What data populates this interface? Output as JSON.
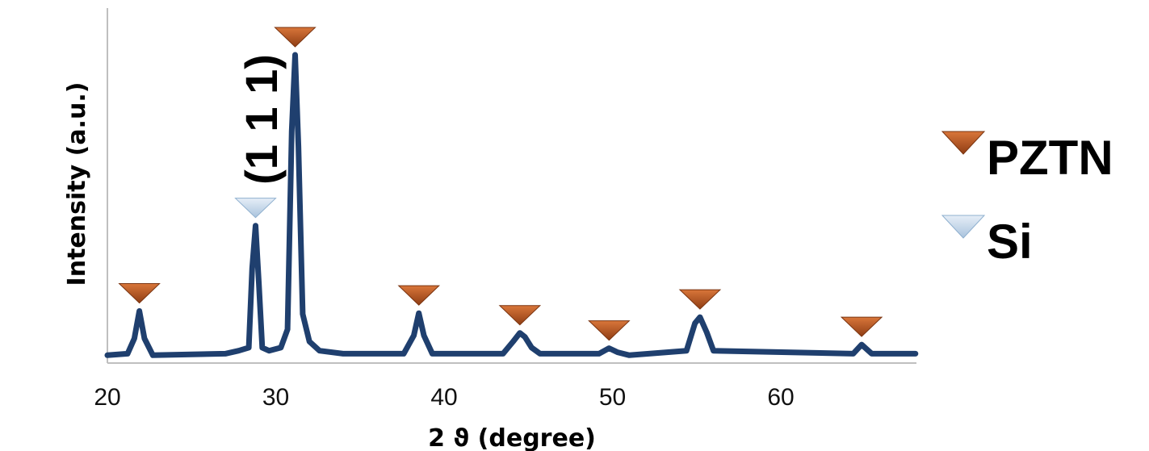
{
  "chart_data": {
    "type": "line",
    "title": "",
    "xlabel": "2 ϑ (degree)",
    "ylabel": "Intensity (a.u.)",
    "xlim": [
      20,
      68
    ],
    "ylim": [
      0,
      1
    ],
    "x_ticks": [
      "20",
      "30",
      "40",
      "50",
      "60"
    ],
    "y_ticks_shown": false,
    "grid": false,
    "legend_position": "right",
    "annotation": "(1 1 1)",
    "series": [
      {
        "color": "#1f3f6e",
        "x": [
          20,
          21.2,
          21.6,
          21.9,
          22.2,
          22.7,
          27,
          27.8,
          28.4,
          28.6,
          28.8,
          29.0,
          29.2,
          29.6,
          30.3,
          30.7,
          30.95,
          31.15,
          31.35,
          31.6,
          32.0,
          32.6,
          34,
          37.6,
          38.2,
          38.5,
          38.8,
          39.3,
          43.5,
          44.1,
          44.5,
          44.8,
          45.2,
          45.7,
          49.2,
          49.8,
          50.3,
          51.0,
          54.4,
          54.9,
          55.2,
          55.6,
          56.0,
          64.3,
          64.8,
          65.4,
          68
        ],
        "y": [
          0.015,
          0.02,
          0.07,
          0.16,
          0.07,
          0.015,
          0.02,
          0.03,
          0.04,
          0.3,
          0.44,
          0.25,
          0.04,
          0.03,
          0.04,
          0.1,
          0.75,
          1.0,
          0.7,
          0.15,
          0.06,
          0.03,
          0.02,
          0.02,
          0.08,
          0.153,
          0.08,
          0.02,
          0.02,
          0.06,
          0.088,
          0.075,
          0.04,
          0.02,
          0.02,
          0.038,
          0.025,
          0.015,
          0.03,
          0.12,
          0.14,
          0.09,
          0.03,
          0.02,
          0.05,
          0.02,
          0.02
        ]
      }
    ],
    "markers": [
      {
        "phase": "PZTN",
        "x": 21.9
      },
      {
        "phase": "Si",
        "x": 28.8
      },
      {
        "phase": "PZTN",
        "x": 31.15
      },
      {
        "phase": "PZTN",
        "x": 38.5
      },
      {
        "phase": "PZTN",
        "x": 44.5
      },
      {
        "phase": "PZTN",
        "x": 49.8
      },
      {
        "phase": "PZTN",
        "x": 55.2
      },
      {
        "phase": "PZTN",
        "x": 64.8
      }
    ],
    "legend": [
      {
        "label": "PZTN",
        "color": "#b5531f"
      },
      {
        "label": "Si",
        "color": "#b9d0e6"
      }
    ]
  }
}
